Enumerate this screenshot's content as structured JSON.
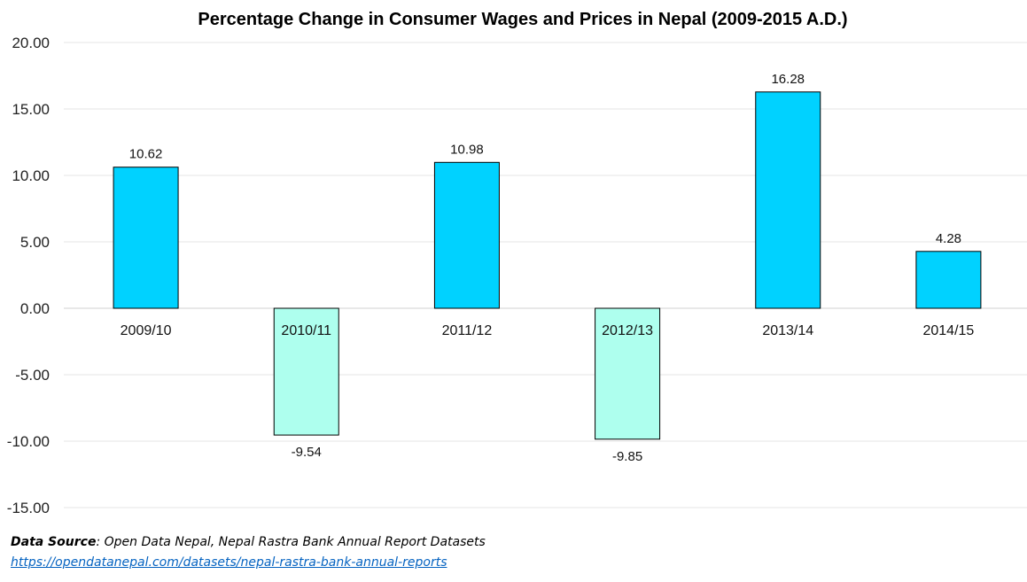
{
  "chart_data": {
    "type": "bar",
    "title": "Percentage Change in Consumer Wages and Prices in Nepal (2009-2015 A.D.)",
    "categories": [
      "2009/10",
      "2010/11",
      "2011/12",
      "2012/13",
      "2013/14",
      "2014/15"
    ],
    "values": [
      10.62,
      -9.54,
      10.98,
      -9.85,
      16.28,
      4.28
    ],
    "value_labels": [
      "10.62",
      "-9.54",
      "10.98",
      "-9.85",
      "16.28",
      "4.28"
    ],
    "xlabel": "",
    "ylabel": "",
    "ylim": [
      -15,
      20
    ],
    "yticks": [
      "20.00",
      "15.00",
      "10.00",
      "5.00",
      "0.00",
      "-5.00",
      "-10.00",
      "-15.00"
    ],
    "grid": true,
    "colors": {
      "positive": "#00D2FF",
      "negative": "#AEFFEE",
      "border": "#000000",
      "grid": "#E6E6E6"
    }
  },
  "footer": {
    "source_label": "Data Source",
    "source_text": ": Open Data Nepal,  Nepal Rastra Bank Annual Report Datasets",
    "link": "https://opendatanepal.com/datasets/nepal-rastra-bank-annual-reports"
  }
}
